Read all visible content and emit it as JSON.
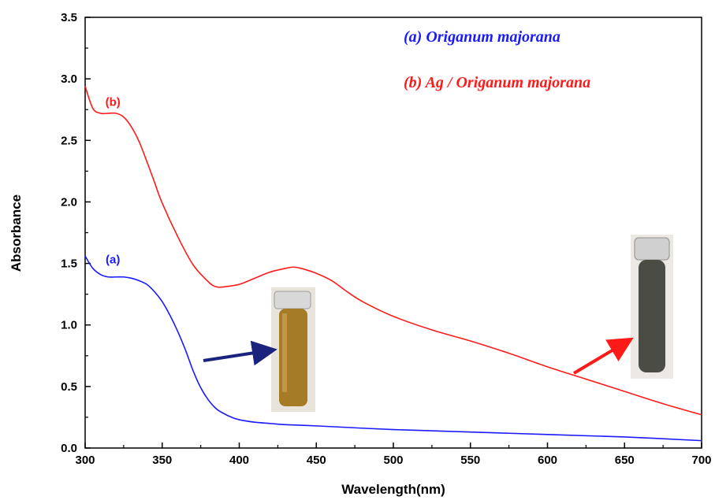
{
  "chart_data": {
    "type": "line",
    "xlabel": "Wavelength(nm)",
    "ylabel": "Absorbance",
    "xlim": [
      300,
      700
    ],
    "ylim": [
      0.0,
      3.5
    ],
    "xticks": [
      300,
      350,
      400,
      450,
      500,
      550,
      600,
      650,
      700
    ],
    "yticks": [
      "0.0",
      "0.5",
      "1.0",
      "1.5",
      "2.0",
      "2.5",
      "3.0",
      "3.5"
    ],
    "grid": false,
    "legend_position": "top-right",
    "legend": [
      {
        "text": "(a) Origanum majorana",
        "color": "#1a1aff"
      },
      {
        "text": "(b) Ag / Origanum majorana",
        "color": "#ff1a1a"
      }
    ],
    "series": [
      {
        "name": "(a)",
        "color": "#1a1aff",
        "x": [
          300,
          305,
          310,
          315,
          320,
          325,
          330,
          335,
          340,
          345,
          350,
          355,
          360,
          365,
          370,
          375,
          380,
          385,
          390,
          395,
          400,
          410,
          420,
          430,
          450,
          500,
          550,
          600,
          650,
          700
        ],
        "y": [
          1.56,
          1.46,
          1.41,
          1.39,
          1.39,
          1.39,
          1.38,
          1.36,
          1.33,
          1.27,
          1.19,
          1.08,
          0.95,
          0.8,
          0.63,
          0.49,
          0.39,
          0.32,
          0.28,
          0.25,
          0.23,
          0.21,
          0.2,
          0.19,
          0.18,
          0.15,
          0.13,
          0.11,
          0.09,
          0.06
        ]
      },
      {
        "name": "(b)",
        "color": "#ff1a1a",
        "x": [
          300,
          305,
          310,
          315,
          320,
          325,
          330,
          335,
          340,
          345,
          350,
          360,
          370,
          380,
          385,
          390,
          400,
          410,
          420,
          430,
          435,
          440,
          450,
          460,
          470,
          480,
          500,
          525,
          550,
          575,
          600,
          625,
          650,
          675,
          700
        ],
        "y": [
          2.94,
          2.76,
          2.72,
          2.72,
          2.72,
          2.69,
          2.61,
          2.49,
          2.33,
          2.16,
          1.99,
          1.72,
          1.49,
          1.35,
          1.31,
          1.31,
          1.33,
          1.38,
          1.43,
          1.46,
          1.47,
          1.46,
          1.42,
          1.36,
          1.27,
          1.19,
          1.07,
          0.96,
          0.87,
          0.77,
          0.66,
          0.56,
          0.46,
          0.36,
          0.27
        ]
      }
    ],
    "curve_labels": [
      {
        "text": "(a)",
        "color": "#1a1aff",
        "x": 318,
        "y": 1.5
      },
      {
        "text": "(b)",
        "color": "#ff1a1a",
        "x": 318,
        "y": 2.78
      }
    ],
    "insets": [
      {
        "name": "extract-vial",
        "liquid_color": "#a67b26"
      },
      {
        "name": "nanoparticle-vial",
        "liquid_color": "#4b4d44"
      }
    ],
    "arrows": [
      {
        "color": "#1a237e"
      },
      {
        "color": "#ff1a1a"
      }
    ]
  }
}
